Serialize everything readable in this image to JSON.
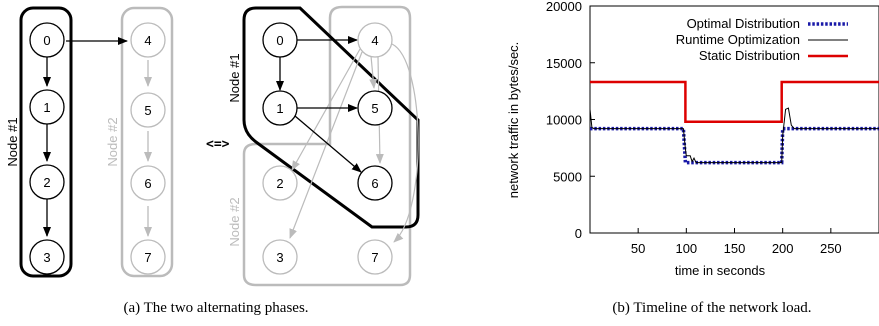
{
  "subfigure_a": {
    "caption": "(a)  The two alternating phases.",
    "left": {
      "group_black_label": "Node #1",
      "group_gray_label": "Node #2",
      "black_nodes": [
        "0",
        "1",
        "2",
        "3"
      ],
      "gray_nodes": [
        "4",
        "5",
        "6",
        "7"
      ]
    },
    "equivalence": "<=>",
    "right": {
      "group_black_label": "Node #1",
      "group_gray_label": "Node #2",
      "nodes": [
        "0",
        "4",
        "1",
        "5",
        "2",
        "6",
        "3",
        "7"
      ]
    },
    "colors": {
      "active": "#000000",
      "inactive": "#bbbbbb"
    }
  },
  "subfigure_b": {
    "caption": "(b)  Timeline of the network load."
  },
  "chart_data": {
    "type": "line",
    "xlabel": "time in seconds",
    "ylabel": "network traffic in bytes/sec.",
    "xlim": [
      0,
      300
    ],
    "ylim": [
      0,
      20000
    ],
    "xticks": [
      50,
      100,
      150,
      200,
      250
    ],
    "yticks": [
      0,
      5000,
      10000,
      15000,
      20000
    ],
    "legend_position": "top-right",
    "series": [
      {
        "name": "Optimal Distribution",
        "color": "#1a1aa8",
        "style": "dotted",
        "x": [
          0,
          97,
          99,
          100,
          199,
          200,
          300
        ],
        "y": [
          9200,
          9200,
          6200,
          6200,
          6200,
          9200,
          9200
        ]
      },
      {
        "name": "Runtime Optimization",
        "color": "#000000",
        "style": "solid",
        "x": [
          0,
          2,
          4,
          97,
          99,
          100,
          104,
          106,
          108,
          110,
          199,
          200,
          203,
          206,
          209,
          212,
          300
        ],
        "y": [
          10900,
          9300,
          9200,
          9200,
          7400,
          6800,
          6800,
          6300,
          6600,
          6200,
          6200,
          8600,
          10900,
          11000,
          9500,
          9200,
          9200
        ]
      },
      {
        "name": "Static Distribution",
        "color": "#dd0000",
        "style": "solid",
        "x": [
          0,
          99,
          99,
          199,
          199,
          300
        ],
        "y": [
          13300,
          13300,
          9800,
          9800,
          13300,
          13300
        ]
      }
    ]
  }
}
